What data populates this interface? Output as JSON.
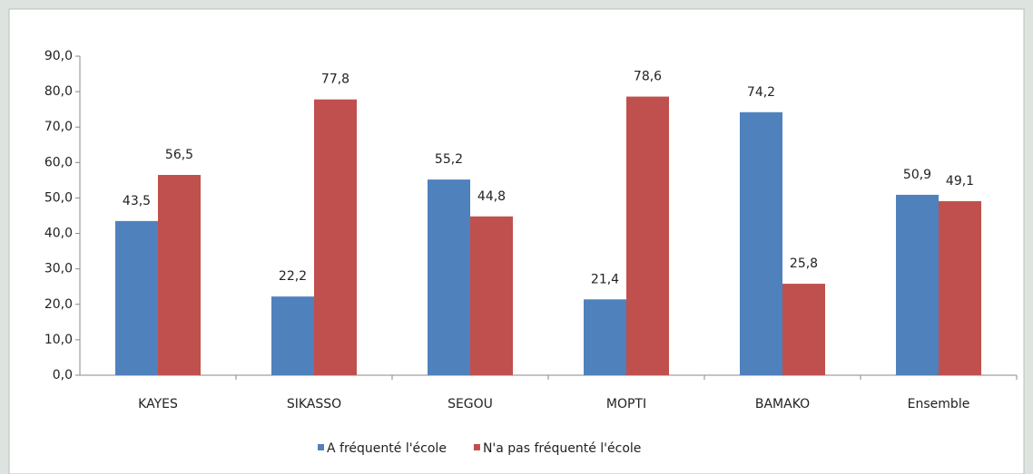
{
  "chart_data": {
    "type": "bar",
    "categories": [
      "KAYES",
      "SIKASSO",
      "SEGOU",
      "MOPTI",
      "BAMAKO",
      "Ensemble"
    ],
    "series": [
      {
        "name": "A fréquenté l'école",
        "color": "#4f81bd",
        "values": [
          43.5,
          22.2,
          55.2,
          21.4,
          74.2,
          50.9
        ],
        "value_labels": [
          "43,5",
          "22,2",
          "55,2",
          "21,4",
          "74,2",
          "50,9"
        ]
      },
      {
        "name": "N'a pas fréquenté l'école",
        "color": "#c0504d",
        "values": [
          56.5,
          77.8,
          44.8,
          78.6,
          25.8,
          49.1
        ],
        "value_labels": [
          "56,5",
          "77,8",
          "44,8",
          "78,6",
          "25,8",
          "49,1"
        ]
      }
    ],
    "ylim": [
      0,
      90
    ],
    "yticks": [
      {
        "value": 0,
        "label": "0,0"
      },
      {
        "value": 10,
        "label": "10,0"
      },
      {
        "value": 20,
        "label": "20,0"
      },
      {
        "value": 30,
        "label": "30,0"
      },
      {
        "value": 40,
        "label": "40,0"
      },
      {
        "value": 50,
        "label": "50,0"
      },
      {
        "value": 60,
        "label": "60,0"
      },
      {
        "value": 70,
        "label": "70,0"
      },
      {
        "value": 80,
        "label": "80,0"
      },
      {
        "value": 90,
        "label": "90,0"
      }
    ],
    "legend": "bottom"
  }
}
